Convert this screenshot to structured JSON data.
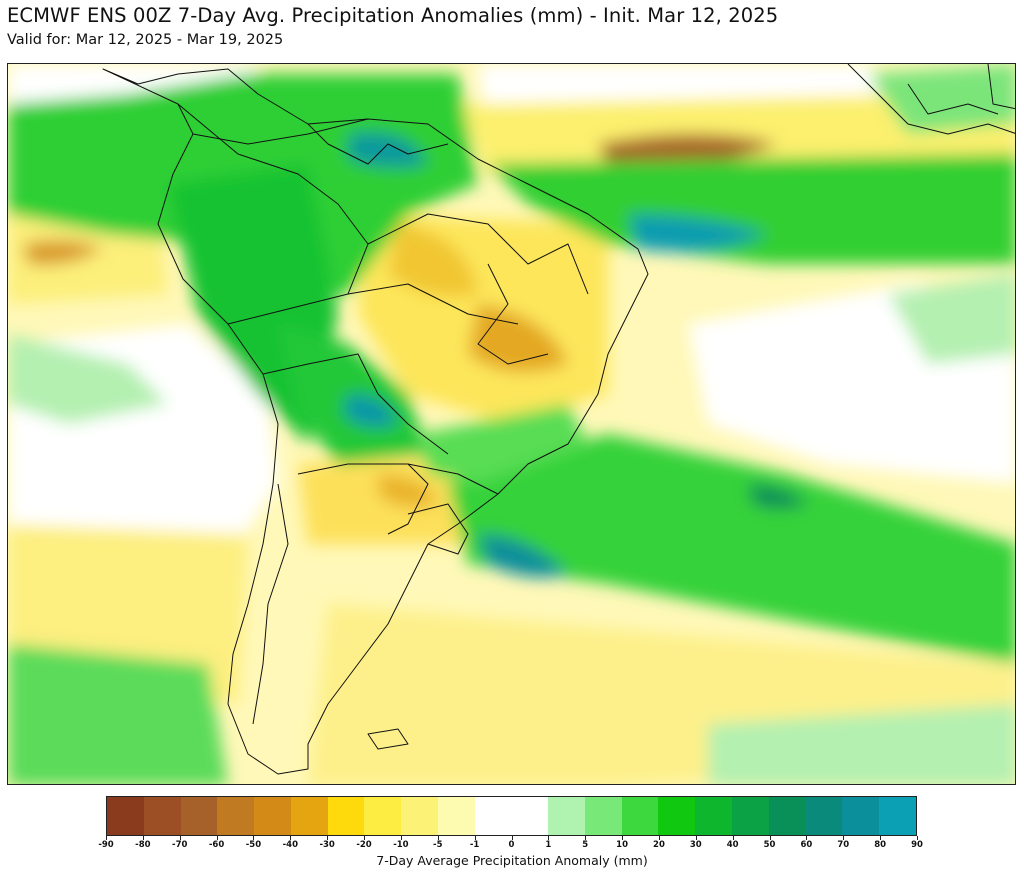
{
  "title": "ECMWF ENS 00Z 7-Day Avg. Precipitation Anomalies (mm) - Init. Mar 12, 2025",
  "subtitle": "Valid for: Mar 12, 2025 - Mar 19, 2025",
  "colorbar": {
    "label": "7-Day Average Precipitation Anomaly (mm)",
    "ticks": [
      "-90",
      "-80",
      "-70",
      "-60",
      "-50",
      "-40",
      "-30",
      "-20",
      "-10",
      "-5",
      "-1",
      "0",
      "1",
      "5",
      "10",
      "20",
      "30",
      "40",
      "50",
      "60",
      "70",
      "80",
      "90"
    ],
    "colors": [
      "#8a3b1d",
      "#9c4f24",
      "#a6602a",
      "#bf7a22",
      "#d48a16",
      "#e5a511",
      "#fed90b",
      "#fdec42",
      "#fcf376",
      "#fdfbb0",
      "#ffffff",
      "#ffffff",
      "#b0f2b0",
      "#78e878",
      "#3dd83d",
      "#10c80f",
      "#0eb62e",
      "#0ba245",
      "#099058",
      "#0a8a7a",
      "#0b8f9a",
      "#0ca0b5"
    ]
  },
  "colors": {
    "ocean_neutral": "#fffbd0",
    "land_border": "#111111"
  }
}
